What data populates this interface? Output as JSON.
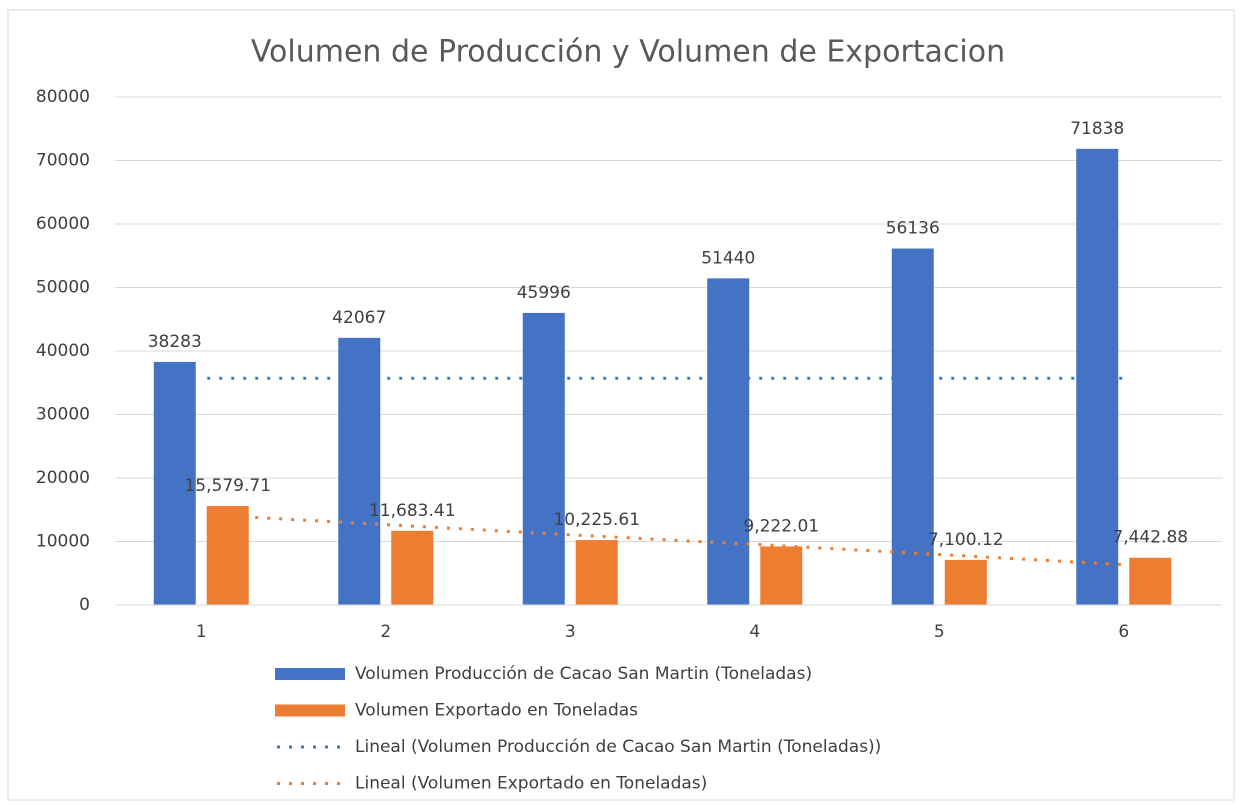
{
  "chart_data": {
    "type": "bar",
    "title": "Volumen de Producción y Volumen de Exportacion",
    "categories": [
      "1",
      "2",
      "3",
      "4",
      "5",
      "6"
    ],
    "series": [
      {
        "name": "Volumen Producción de Cacao San Martin (Toneladas)",
        "color": "#4472c4",
        "type": "bar",
        "values": [
          38283,
          42067,
          45996,
          51440,
          56136,
          71838
        ]
      },
      {
        "name": "Volumen Exportado en Toneladas",
        "color": "#ed7d31",
        "type": "bar",
        "values": [
          15579.71,
          11683.41,
          10225.61,
          9222.01,
          7100.12,
          7442.88
        ],
        "value_labels": [
          "15,579.71",
          "11,683.41",
          "10,225.61",
          "9,222.01",
          "7,100.12",
          "7,442.88"
        ]
      },
      {
        "name": "Lineal (Volumen Producción de Cacao San Martin (Toneladas))",
        "color": "#4472c4",
        "type": "line",
        "dash": "dotted",
        "values": [
          35700,
          35700,
          35700,
          35700,
          35700,
          35700
        ]
      },
      {
        "name": "Lineal (Volumen Exportado en Toneladas)",
        "color": "#ed7d31",
        "type": "line",
        "dash": "dotted",
        "values": [
          14200,
          12600,
          11000,
          9500,
          7900,
          6300
        ]
      }
    ],
    "ylim": [
      0,
      80000
    ],
    "yticks": [
      0,
      10000,
      20000,
      30000,
      40000,
      50000,
      60000,
      70000,
      80000
    ],
    "grid": true,
    "legend": "bottom"
  }
}
